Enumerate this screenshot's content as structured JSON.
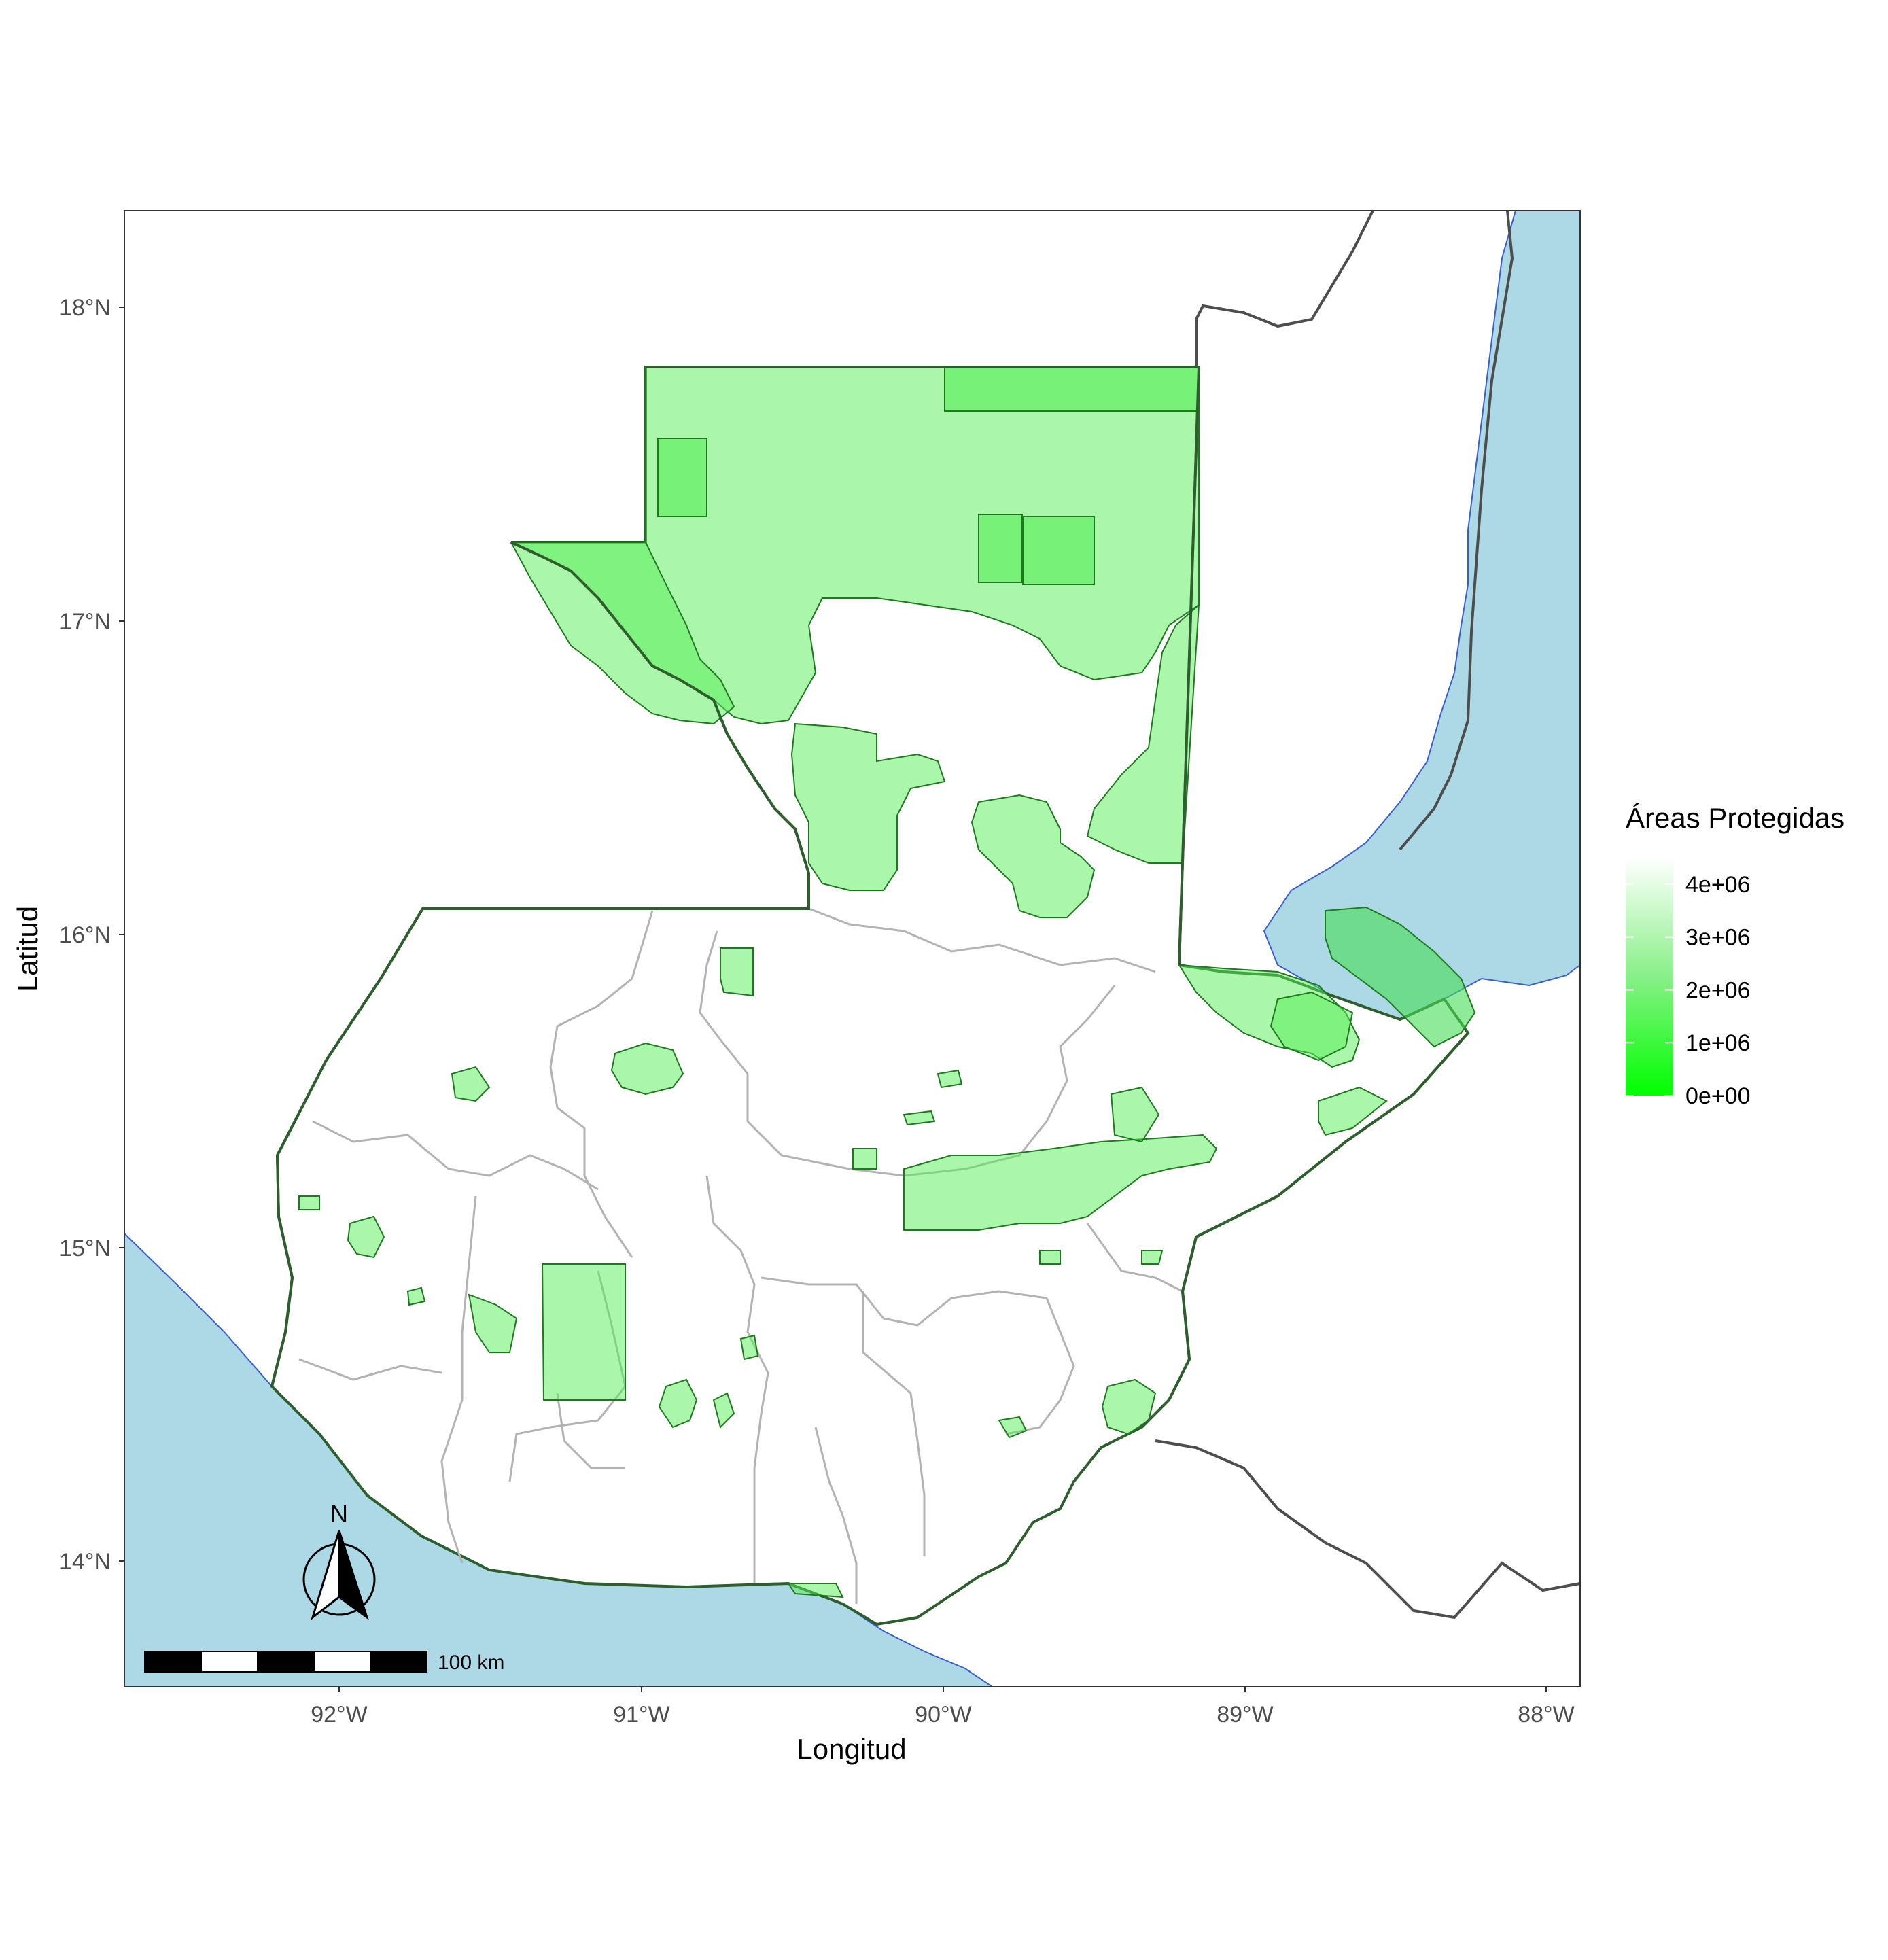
{
  "map": {
    "xlabel": "Longitud",
    "ylabel": "Latitud",
    "x_ticks": [
      "92°W",
      "91°W",
      "90°W",
      "89°W",
      "88°W"
    ],
    "y_ticks": [
      "18°N",
      "17°N",
      "16°N",
      "15°N",
      "14°N"
    ],
    "x_range": [
      -92.74,
      -88.1
    ],
    "y_range": [
      13.6,
      18.31
    ],
    "grid": false,
    "ocean_color": "#add8e6",
    "land_color": "#ffffff",
    "protected_area_color": "#55ee55",
    "department_border_color": "#b3b3b3",
    "country_border_color": "#4d4d4d"
  },
  "legend": {
    "title": "Áreas Protegidas",
    "placement": "right",
    "labels": [
      "4e+06",
      "3e+06",
      "2e+06",
      "1e+06",
      "0e+00"
    ],
    "values": [
      4000000,
      3000000,
      2000000,
      1000000,
      0
    ],
    "color_low": "#00ff00",
    "color_high": "#ffffff"
  },
  "scale_bar": {
    "label": "100 km",
    "distance_km": 100
  },
  "north_arrow": {
    "label": "N",
    "icon": "north-arrow-icon"
  }
}
